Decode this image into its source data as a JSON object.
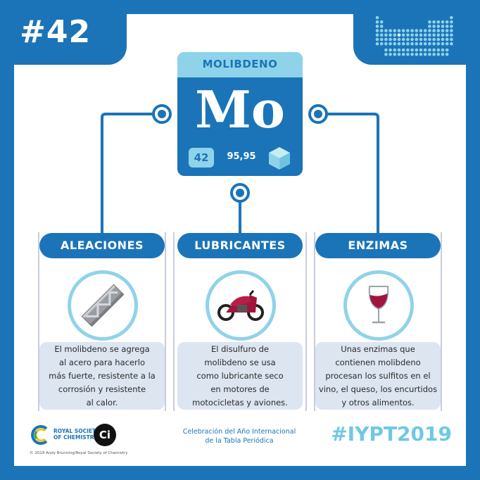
{
  "number": "#42",
  "element": {
    "name": "MOLIBDENO",
    "symbol": "Mo",
    "atomic_number": "42",
    "atomic_mass": "95,95"
  },
  "columns": [
    {
      "title": "ALEACIONES",
      "icon": "steel-beam-icon",
      "lines": [
        "El molibdeno se agrega",
        "al acero para hacerlo",
        "más fuerte, resistente a la",
        "corrosión y resistente",
        "al calor."
      ]
    },
    {
      "title": "LUBRICANTES",
      "icon": "motorcycle-icon",
      "lines": [
        "El disulfuro de",
        "molibdeno se usa",
        "como lubricante seco",
        "en motores de",
        "motocicletas y aviones."
      ]
    },
    {
      "title": "ENZIMAS",
      "icon": "wine-glass-icon",
      "lines": [
        "Unas enzimas que",
        "contienen molibdeno",
        "procesan los sulfitos en el",
        "vino, el queso, los encurtidos",
        "y otros alimentos."
      ]
    }
  ],
  "footer": {
    "rsc_line1": "ROYAL SOCIETY",
    "rsc_line2": "OF CHEMISTRY",
    "ci_logo": "Ci",
    "center_line1": "Celebración del Año Internacional",
    "center_line2": "de la Tabla Periódica",
    "hashtag": "#IYPT2019",
    "copyright": "© 2019 Andy Brunning/Royal Society of Chemistry"
  },
  "colors": {
    "primary_blue": "#1b74b8",
    "light_blue": "#8fd3ea",
    "desc_bg": "#dde5f1",
    "wine_red": "#a0153e"
  }
}
